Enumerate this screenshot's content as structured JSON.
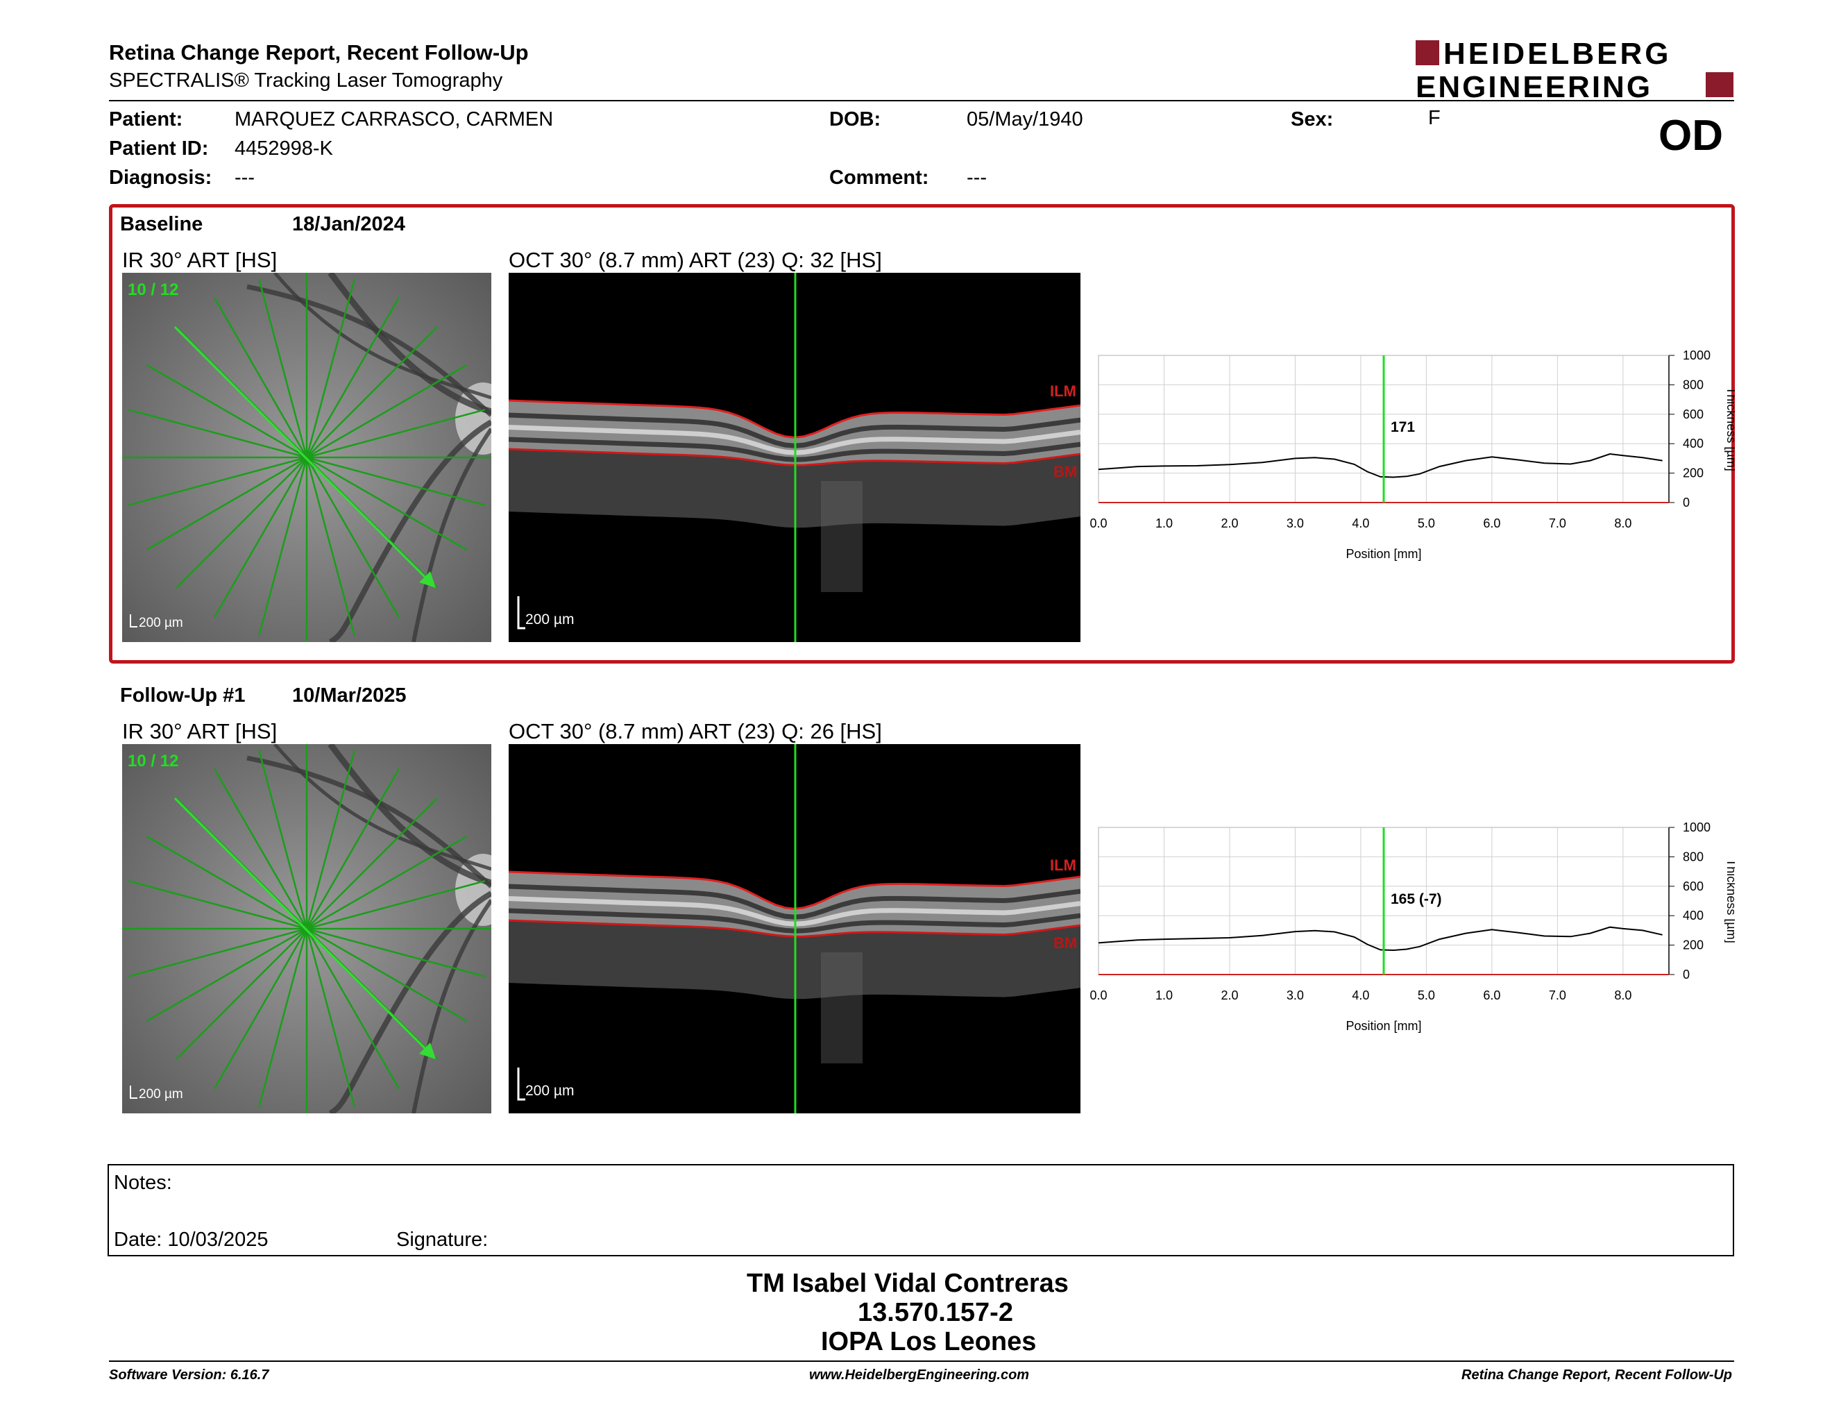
{
  "header": {
    "title": "Retina Change Report, Recent Follow-Up",
    "subtitle": "SPECTRALIS® Tracking Laser Tomography",
    "logo_line1": "HEIDELBERG",
    "logo_line2": "ENGINEERING",
    "brand_color": "#8b1a2b"
  },
  "patient": {
    "patient_label": "Patient:",
    "patient_value": "MARQUEZ CARRASCO, CARMEN",
    "id_label": "Patient ID:",
    "id_value": "4452998-K",
    "diagnosis_label": "Diagnosis:",
    "diagnosis_value": "---",
    "dob_label": "DOB:",
    "dob_value": "05/May/1940",
    "comment_label": "Comment:",
    "comment_value": "---",
    "sex_label": "Sex:",
    "sex_value": "F",
    "eye": "OD"
  },
  "baseline": {
    "label": "Baseline",
    "date": "18/Jan/2024",
    "ir_label": "IR 30° ART [HS]",
    "oct_label": "OCT 30° (8.7 mm) ART (23) Q: 32 [HS]",
    "scan_index": "10 / 12",
    "scale_bar": "200 µm",
    "ilm": "ILM",
    "bm": "BM",
    "marker_value": "171"
  },
  "followup": {
    "label": "Follow-Up #1",
    "date": "10/Mar/2025",
    "ir_label": "IR 30° ART [HS]",
    "oct_label": "OCT 30° (8.7 mm) ART (23) Q: 26 [HS]",
    "scan_index": "10 / 12",
    "scale_bar": "200 µm",
    "ilm": "ILM",
    "bm": "BM",
    "marker_value": "165 (-7)"
  },
  "chart_data": [
    {
      "type": "line",
      "xlabel": "Position [mm]",
      "ylabel": "Thickness [µm]",
      "xlim": [
        0,
        8.7
      ],
      "ylim": [
        0,
        1000
      ],
      "xticks": [
        "0.0",
        "1.0",
        "2.0",
        "3.0",
        "4.0",
        "5.0",
        "6.0",
        "7.0",
        "8.0"
      ],
      "yticks": [
        "0",
        "200",
        "400",
        "600",
        "800",
        "1000"
      ],
      "marker_x": 4.35,
      "marker_label": "171",
      "series": [
        {
          "x": [
            0,
            0.3,
            0.6,
            1.0,
            1.5,
            2.0,
            2.5,
            3.0,
            3.3,
            3.6,
            3.9,
            4.1,
            4.3,
            4.5,
            4.7,
            4.9,
            5.2,
            5.6,
            6.0,
            6.4,
            6.8,
            7.2,
            7.5,
            7.8,
            8.0,
            8.3,
            8.6
          ],
          "y": [
            225,
            235,
            245,
            248,
            250,
            258,
            272,
            300,
            305,
            295,
            260,
            210,
            175,
            172,
            178,
            195,
            245,
            285,
            310,
            290,
            268,
            262,
            285,
            330,
            320,
            305,
            285
          ]
        }
      ]
    },
    {
      "type": "line",
      "xlabel": "Position [mm]",
      "ylabel": "Thickness [µm]",
      "xlim": [
        0,
        8.7
      ],
      "ylim": [
        0,
        1000
      ],
      "xticks": [
        "0.0",
        "1.0",
        "2.0",
        "3.0",
        "4.0",
        "5.0",
        "6.0",
        "7.0",
        "8.0"
      ],
      "yticks": [
        "0",
        "200",
        "400",
        "600",
        "800",
        "1000"
      ],
      "marker_x": 4.35,
      "marker_label": "165 (-7)",
      "series": [
        {
          "x": [
            0,
            0.3,
            0.6,
            1.0,
            1.5,
            2.0,
            2.5,
            3.0,
            3.3,
            3.6,
            3.9,
            4.1,
            4.3,
            4.5,
            4.7,
            4.9,
            5.2,
            5.6,
            6.0,
            6.4,
            6.8,
            7.2,
            7.5,
            7.8,
            8.0,
            8.3,
            8.6
          ],
          "y": [
            215,
            225,
            235,
            240,
            245,
            250,
            265,
            292,
            298,
            290,
            255,
            205,
            168,
            165,
            172,
            190,
            240,
            280,
            305,
            285,
            262,
            258,
            280,
            322,
            312,
            300,
            270
          ]
        }
      ]
    }
  ],
  "notes": {
    "notes_label": "Notes:",
    "date_label": "Date: 10/03/2025",
    "signature_label": "Signature:"
  },
  "signature": {
    "name": "TM Isabel Vidal Contreras",
    "rut": "13.570.157-2",
    "org": "IOPA Los Leones"
  },
  "footer": {
    "software": "Software Version: 6.16.7",
    "website": "www.HeidelbergEngineering.com",
    "report": "Retina Change Report, Recent Follow-Up"
  }
}
